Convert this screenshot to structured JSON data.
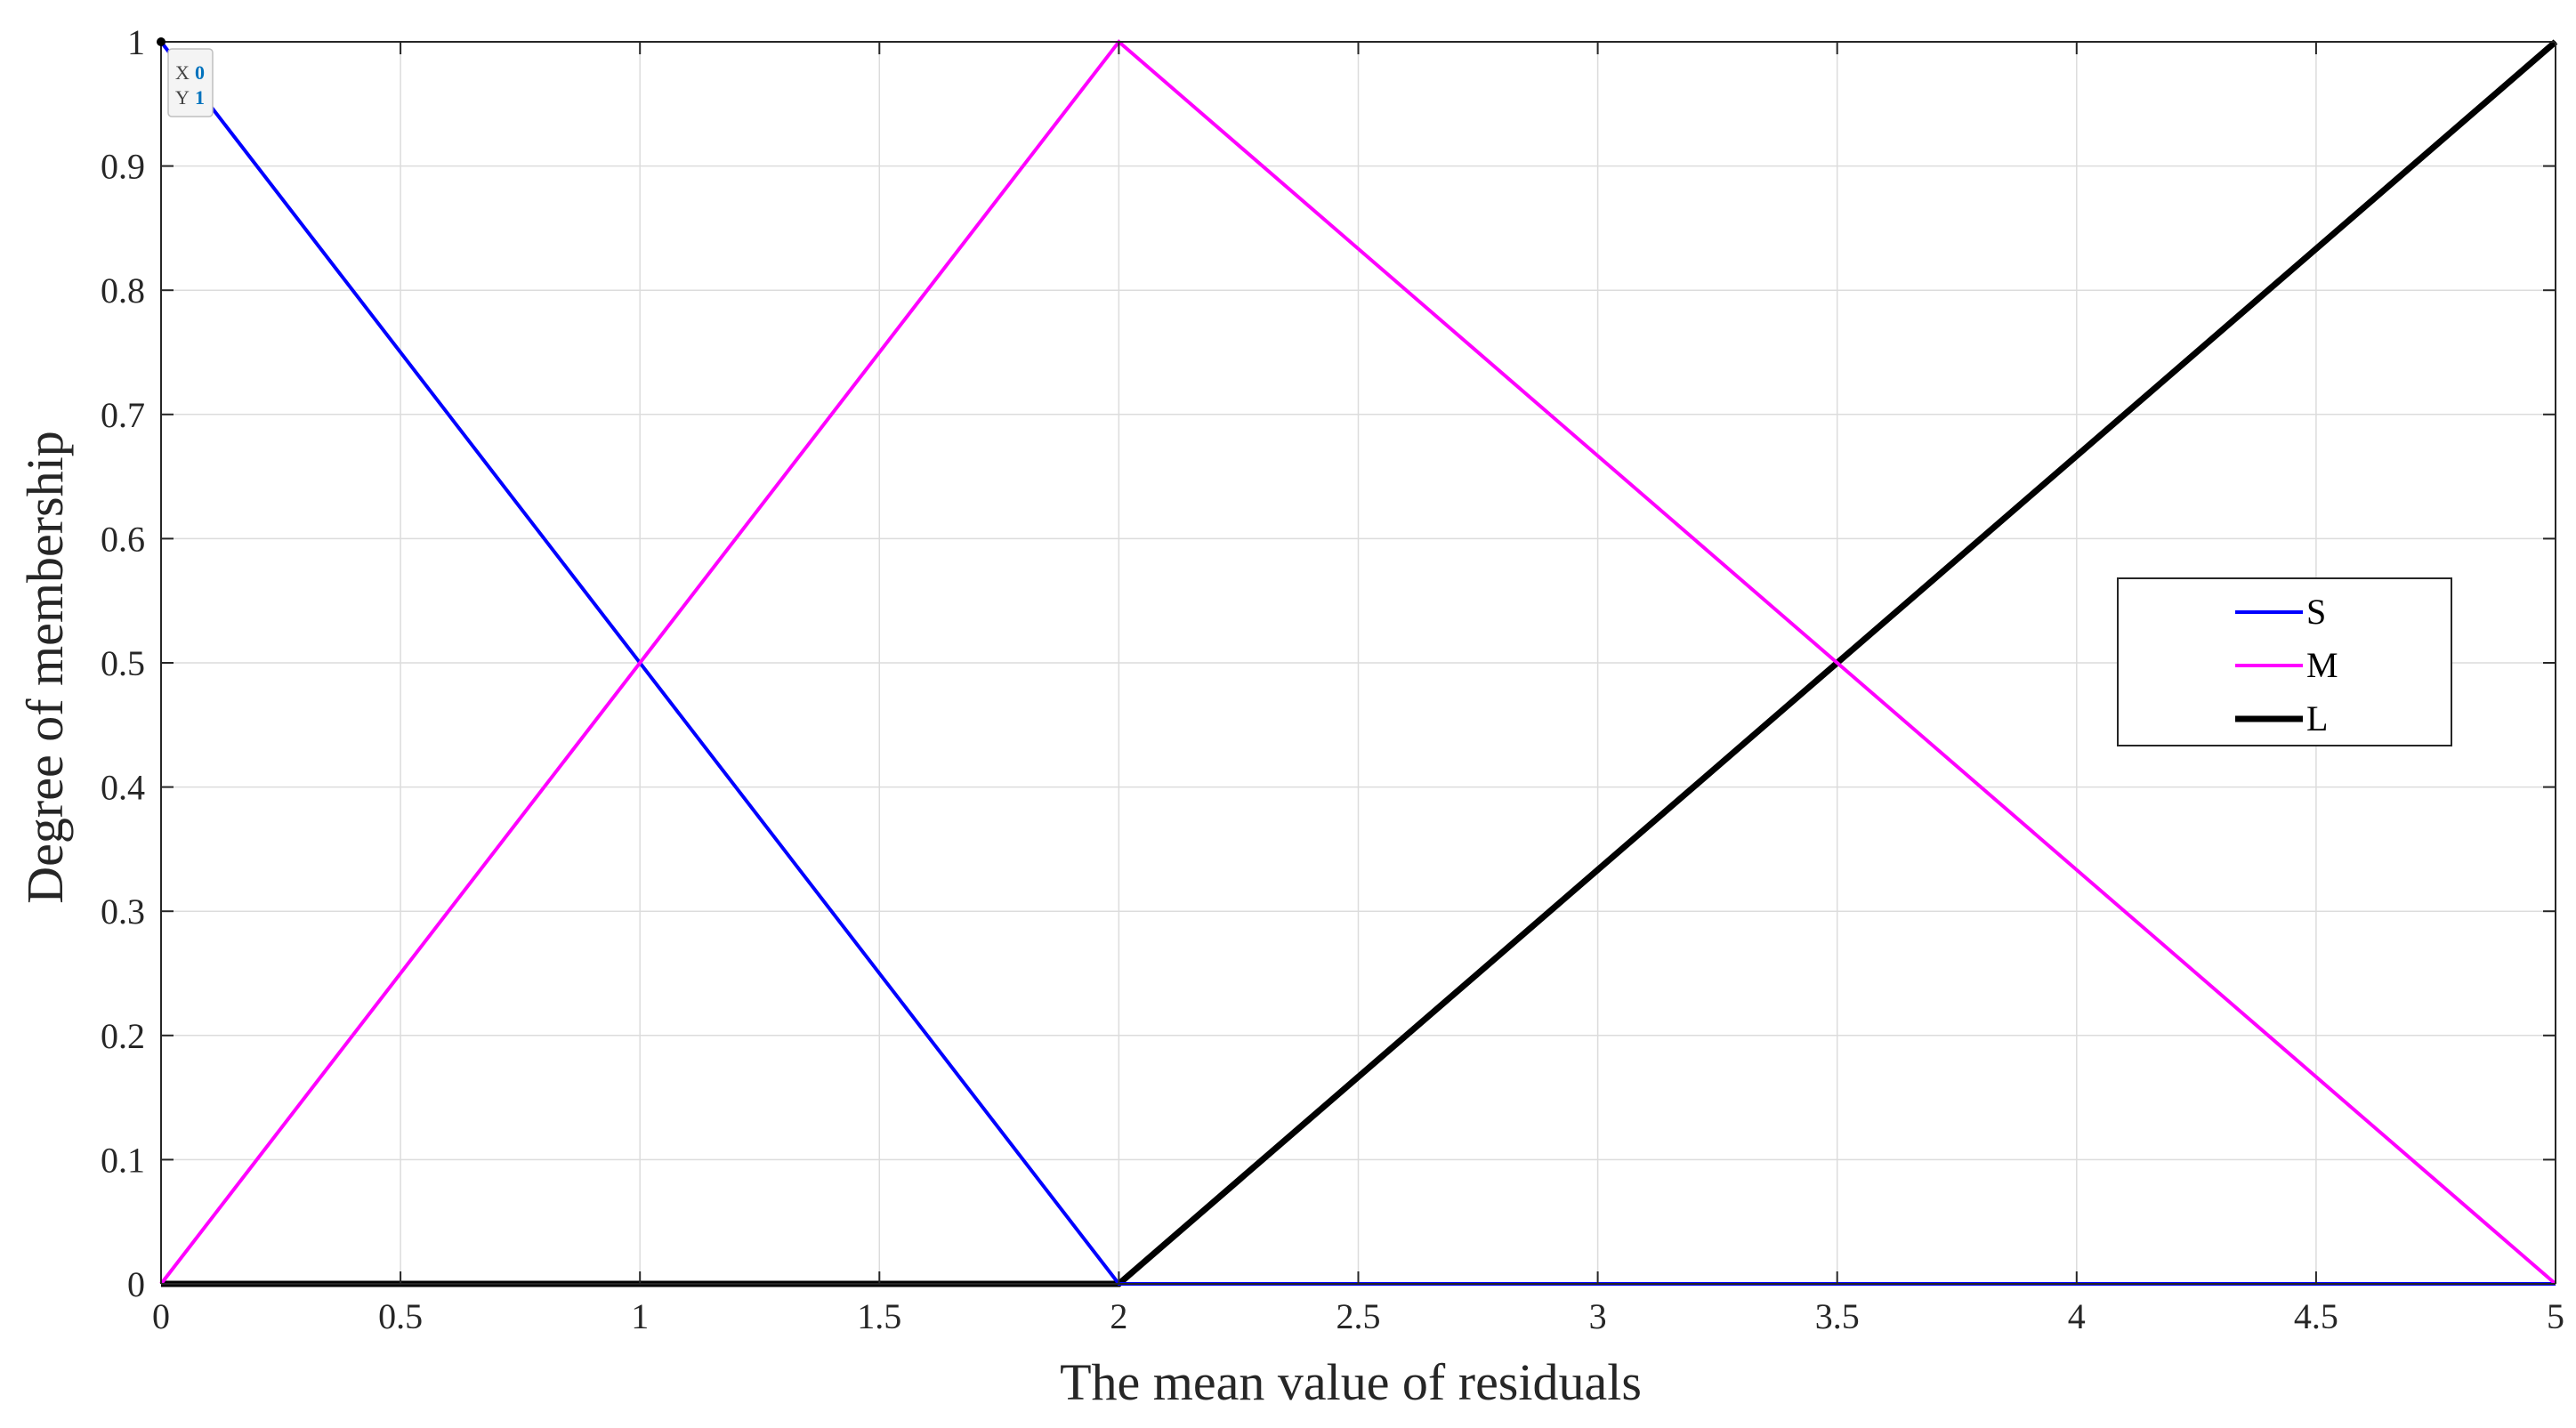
{
  "chart_data": {
    "type": "line",
    "title": "",
    "xlabel": "The mean value of residuals",
    "ylabel": "Degree of membership",
    "xlim": [
      0,
      5
    ],
    "ylim": [
      0,
      1
    ],
    "xticks": [
      0,
      0.5,
      1,
      1.5,
      2,
      2.5,
      3,
      3.5,
      4,
      4.5,
      5
    ],
    "xtick_labels": [
      "0",
      "0.5",
      "1",
      "1.5",
      "2",
      "2.5",
      "3",
      "3.5",
      "4",
      "4.5",
      "5"
    ],
    "yticks": [
      0,
      0.1,
      0.2,
      0.3,
      0.4,
      0.5,
      0.6,
      0.7,
      0.8,
      0.9,
      1
    ],
    "ytick_labels": [
      "0",
      "0.1",
      "0.2",
      "0.3",
      "0.4",
      "0.5",
      "0.6",
      "0.7",
      "0.8",
      "0.9",
      "1"
    ],
    "grid": true,
    "legend_position": "right",
    "series": [
      {
        "name": "S",
        "color": "#0000ff",
        "x": [
          0,
          2,
          5
        ],
        "y": [
          1,
          0,
          0
        ]
      },
      {
        "name": "M",
        "color": "#ff00ff",
        "x": [
          0,
          2,
          5
        ],
        "y": [
          0,
          1,
          0
        ]
      },
      {
        "name": "L",
        "color": "#000000",
        "x": [
          0,
          2,
          5
        ],
        "y": [
          0,
          0,
          1
        ]
      }
    ],
    "datatip": {
      "x_label": "X",
      "x_value": "0",
      "y_label": "Y",
      "y_value": "1",
      "at_x": 0,
      "at_y": 1
    }
  }
}
